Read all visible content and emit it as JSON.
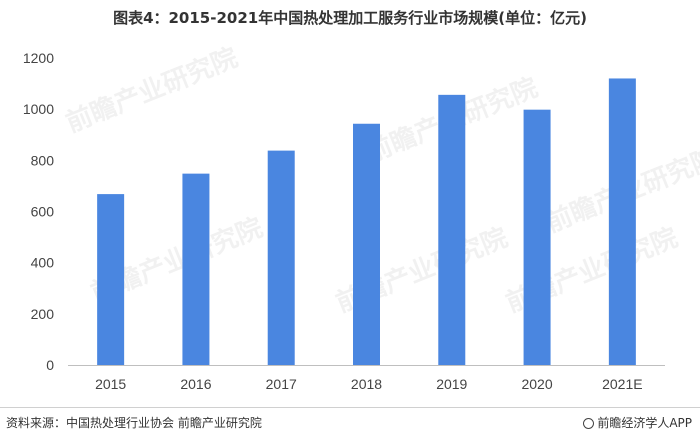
{
  "title": "图表4：2015-2021年中国热处理加工服务行业市场规模(单位：亿元)",
  "watermark": "前瞻产业研究院",
  "footer": {
    "source": "资料来源：中国热处理行业协会 前瞻产业研究院",
    "brand": "前瞻经济学人APP"
  },
  "colors": {
    "bar": "#4a86e0",
    "axis": "#bfbfbf"
  },
  "chart_data": {
    "type": "bar",
    "title": "图表4：2015-2021年中国热处理加工服务行业市场规模(单位：亿元)",
    "categories": [
      "2015",
      "2016",
      "2017",
      "2018",
      "2019",
      "2020",
      "2021E"
    ],
    "values": [
      668,
      748,
      838,
      943,
      1056,
      998,
      1120
    ],
    "ylim": [
      0,
      1200
    ],
    "yticks": [
      0,
      200,
      400,
      600,
      800,
      1000,
      1200
    ],
    "grid": false,
    "legend": "none"
  }
}
